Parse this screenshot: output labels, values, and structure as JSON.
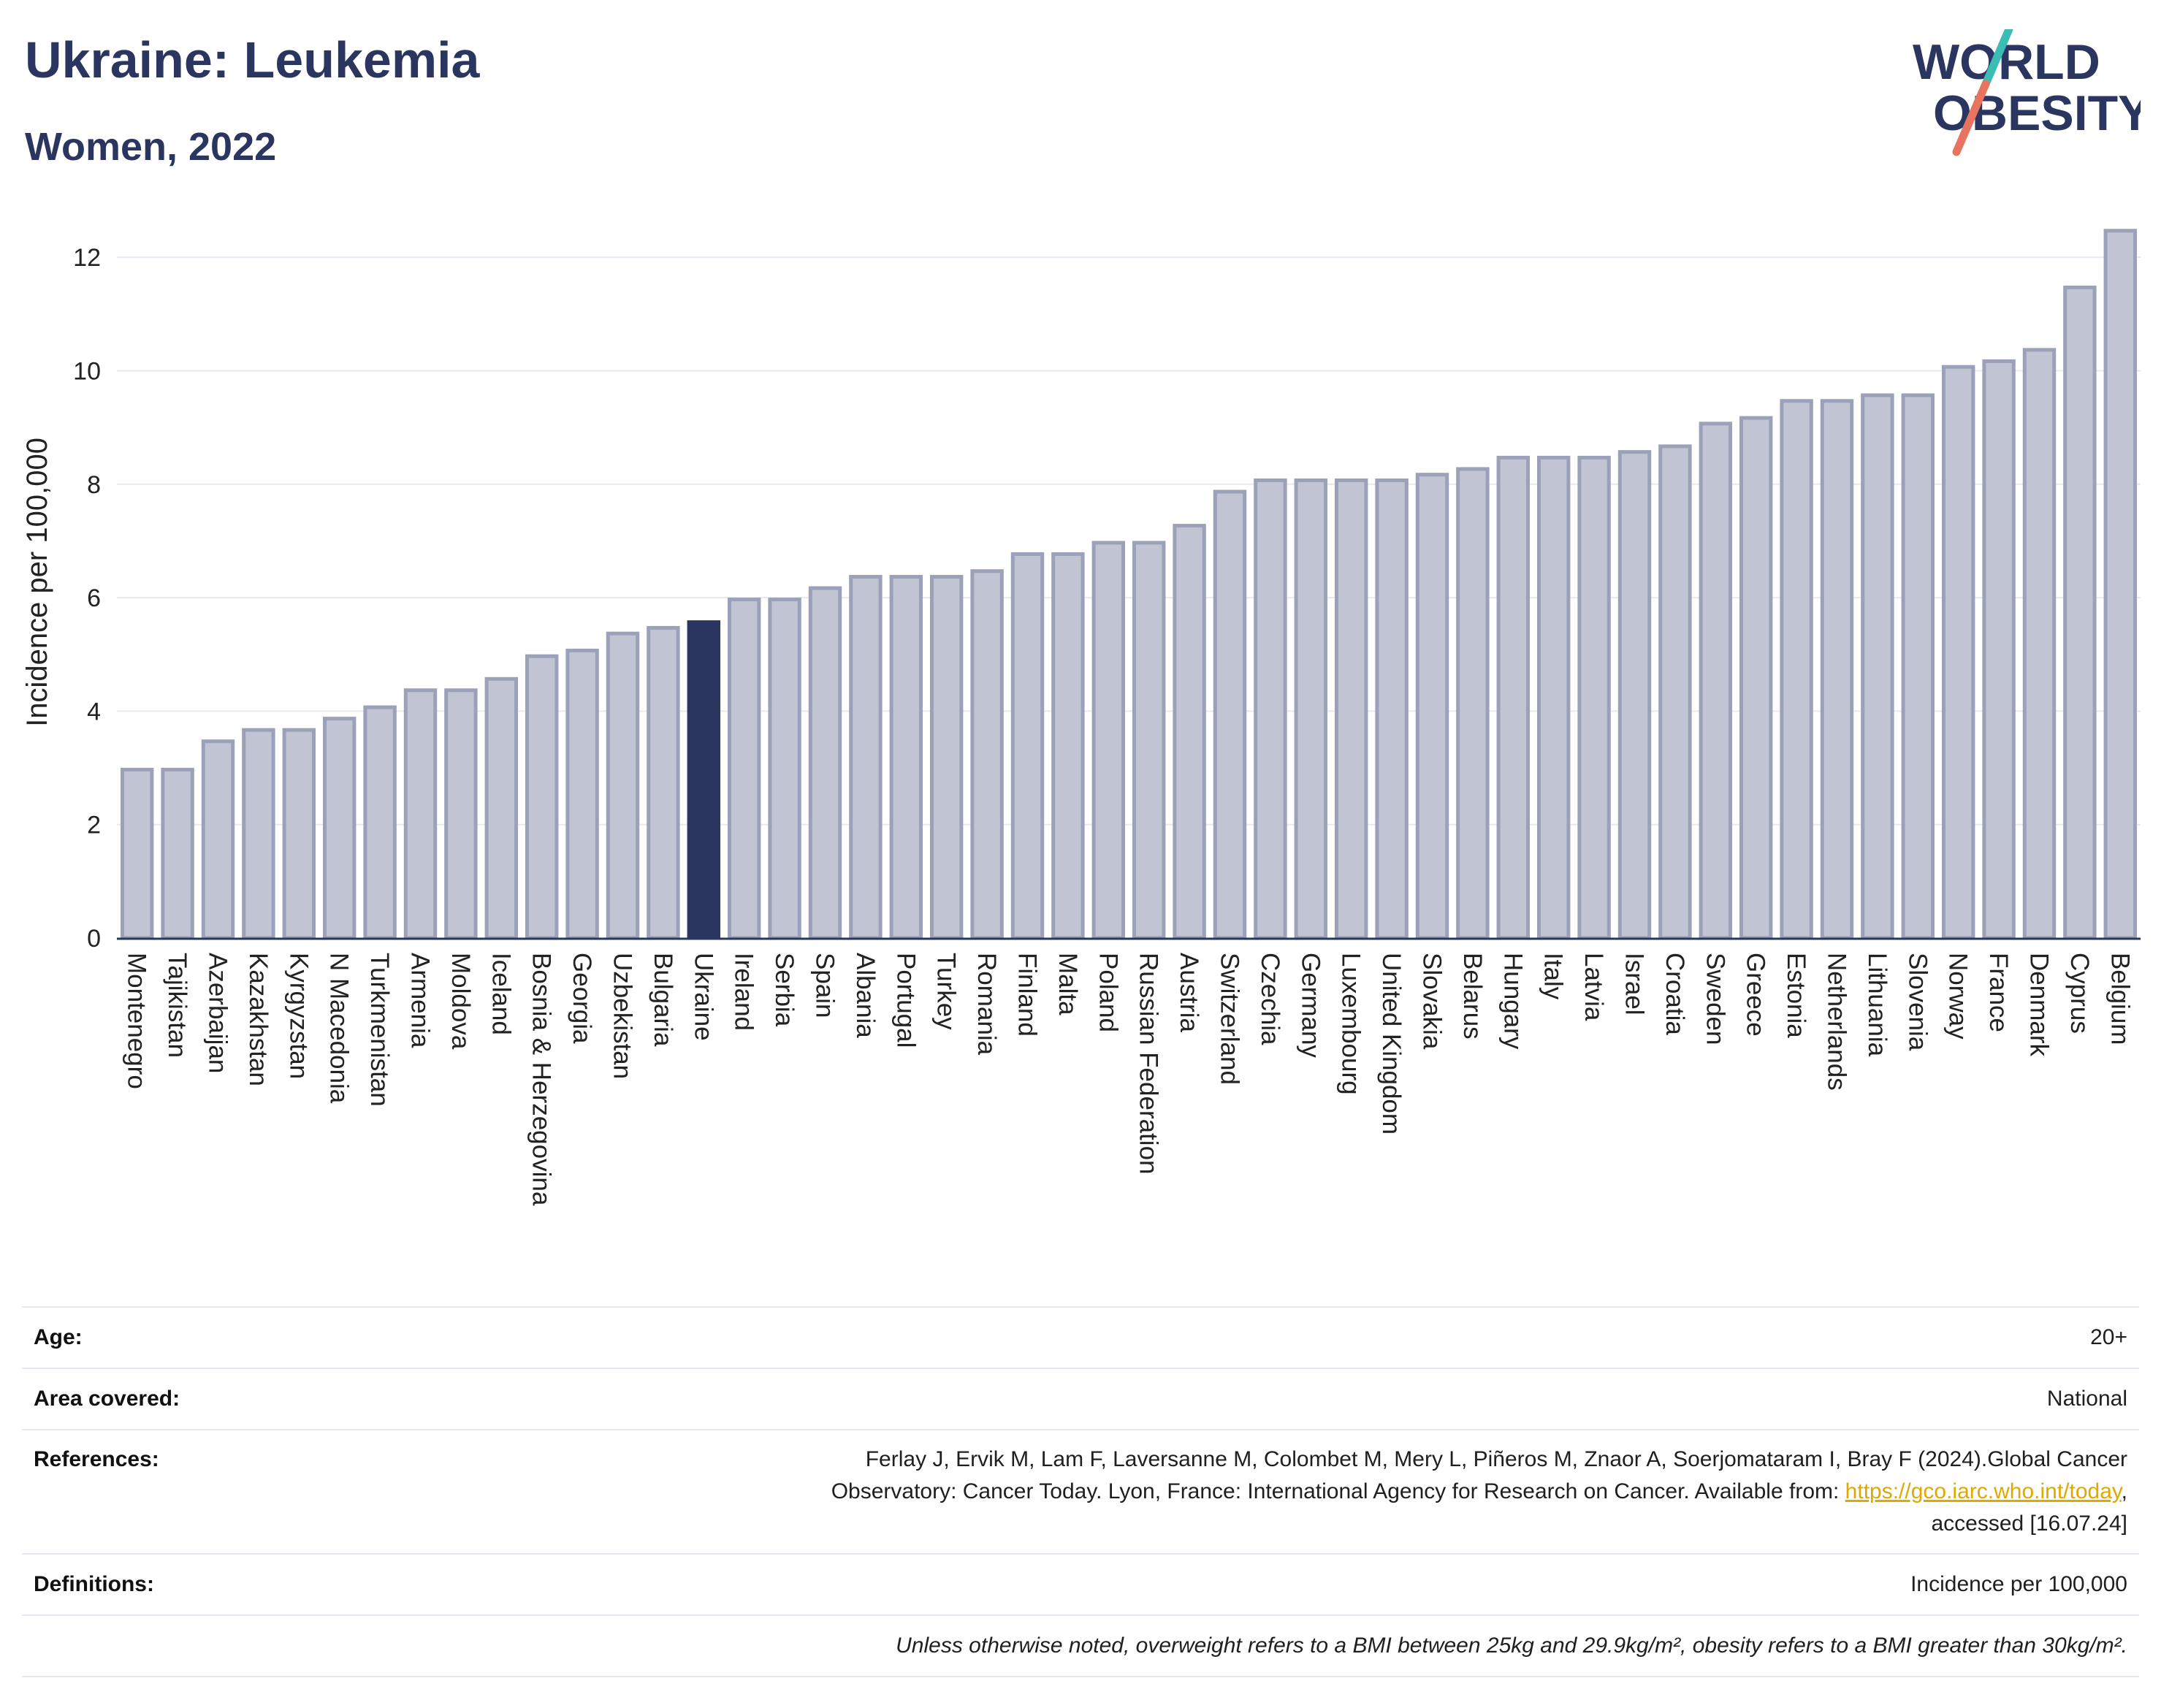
{
  "header": {
    "title": "Ukraine: Leukemia",
    "subtitle": "Women, 2022"
  },
  "logo": {
    "line1": "WORLD",
    "line2": "OBESITY",
    "accent_colors": [
      "#3bbdb6",
      "#e8735f"
    ],
    "text_color": "#2a3560"
  },
  "chart_data": {
    "type": "bar",
    "title": "Ukraine: Leukemia",
    "subtitle": "Women, 2022",
    "ylabel": "Incidence per 100,000",
    "xlabel": "",
    "ylim": [
      0,
      12.8
    ],
    "yticks": [
      0,
      2,
      4,
      6,
      8,
      10,
      12
    ],
    "grid": true,
    "highlight": "Ukraine",
    "colors": {
      "bar": "#c0c4d3",
      "bar_edge": "#9ba1b8",
      "highlight": "#2a3560",
      "grid": "#e6e9ef"
    },
    "categories": [
      "Montenegro",
      "Tajikistan",
      "Azerbaijan",
      "Kazakhstan",
      "Kyrgyzstan",
      "N Macedonia",
      "Turkmenistan",
      "Armenia",
      "Moldova",
      "Iceland",
      "Bosnia & Herzegovina",
      "Georgia",
      "Uzbekistan",
      "Bulgaria",
      "Ukraine",
      "Ireland",
      "Serbia",
      "Spain",
      "Albania",
      "Portugal",
      "Turkey",
      "Romania",
      "Finland",
      "Malta",
      "Poland",
      "Russian Federation",
      "Austria",
      "Switzerland",
      "Czechia",
      "Germany",
      "Luxembourg",
      "United Kingdom",
      "Slovakia",
      "Belarus",
      "Hungary",
      "Italy",
      "Latvia",
      "Israel",
      "Croatia",
      "Sweden",
      "Greece",
      "Estonia",
      "Netherlands",
      "Lithuania",
      "Slovenia",
      "Norway",
      "France",
      "Denmark",
      "Cyprus",
      "Belgium"
    ],
    "values": [
      3.0,
      3.0,
      3.5,
      3.7,
      3.7,
      3.9,
      4.1,
      4.4,
      4.4,
      4.6,
      5.0,
      5.1,
      5.4,
      5.5,
      5.6,
      6.0,
      6.0,
      6.2,
      6.4,
      6.4,
      6.4,
      6.5,
      6.8,
      6.8,
      7.0,
      7.0,
      7.3,
      7.9,
      8.1,
      8.1,
      8.1,
      8.1,
      8.2,
      8.3,
      8.5,
      8.5,
      8.5,
      8.6,
      8.7,
      9.1,
      9.2,
      9.5,
      9.5,
      9.6,
      9.6,
      10.1,
      10.2,
      10.4,
      11.5,
      12.5
    ]
  },
  "info": {
    "age_label": "Age:",
    "age_value": "20+",
    "area_label": "Area covered:",
    "area_value": "National",
    "references_label": "References:",
    "references_line1": "Ferlay J, Ervik M, Lam F, Laversanne M, Colombet M, Mery L, Piñeros M, Znaor A, Soerjomataram I, Bray F (2024).Global Cancer",
    "references_line2": "Observatory: Cancer Today. Lyon, France: International Agency for Research on Cancer. Available from: ",
    "references_link": "https://gco.iarc.who.int/today",
    "references_line2_end": ",",
    "references_line3": "accessed [16.07.24]",
    "definitions_label": "Definitions:",
    "definitions_value": "Incidence per 100,000",
    "note": "Unless otherwise noted, overweight refers to a BMI between 25kg and 29.9kg/m², obesity refers to a BMI greater than 30kg/m²."
  }
}
